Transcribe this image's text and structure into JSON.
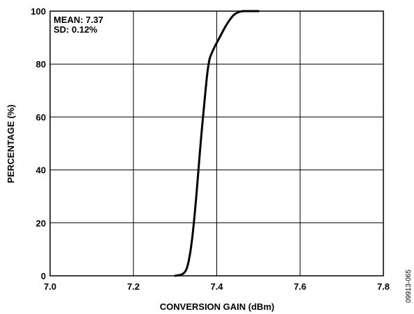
{
  "chart_data": {
    "type": "line",
    "title": "",
    "xlabel": "CONVERSION GAIN  (dBm)",
    "ylabel": "PERCENTAGE (%)",
    "xlim": [
      7.0,
      7.8
    ],
    "ylim": [
      0,
      100
    ],
    "x_ticks": [
      "7.0",
      "7.2",
      "7.4",
      "7.6",
      "7.8"
    ],
    "y_ticks": [
      "0",
      "20",
      "40",
      "60",
      "80",
      "100"
    ],
    "x_tick_values": [
      7.0,
      7.2,
      7.4,
      7.6,
      7.8
    ],
    "y_tick_values": [
      0,
      20,
      40,
      60,
      80,
      100
    ],
    "grid": true,
    "annotations": [
      "MEAN: 7.37",
      "SD: 0.12%"
    ],
    "series": [
      {
        "x": [
          7.3,
          7.32,
          7.33,
          7.34,
          7.35,
          7.36,
          7.37,
          7.38,
          7.39,
          7.4,
          7.41,
          7.42,
          7.43,
          7.44,
          7.45,
          7.46,
          7.47,
          7.48,
          7.5
        ],
        "y": [
          0,
          0.5,
          3,
          12,
          28,
          48,
          65,
          81,
          85,
          88,
          91,
          94,
          96.5,
          98.5,
          99.5,
          100,
          100,
          100,
          100
        ],
        "color": "#000000"
      }
    ]
  },
  "figure_id": "09913-065"
}
